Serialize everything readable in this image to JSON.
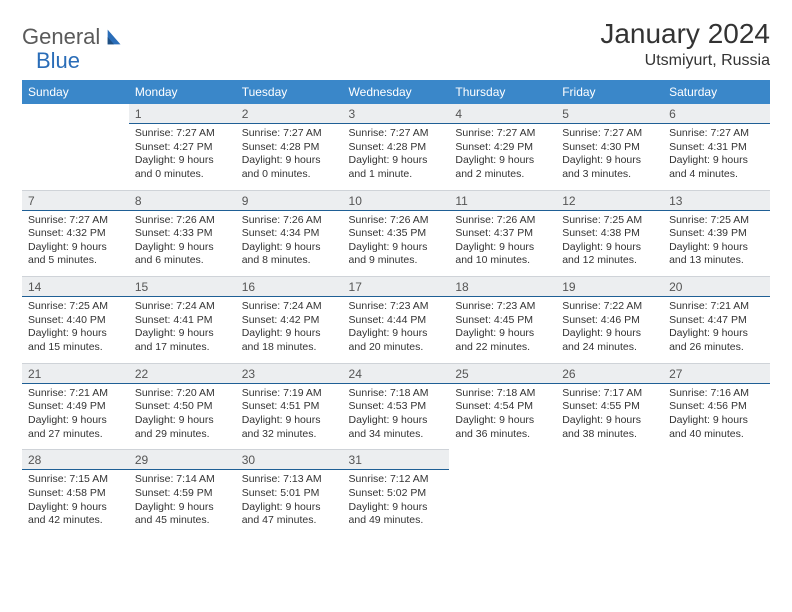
{
  "brand": {
    "part1": "General",
    "part2": "Blue"
  },
  "title": "January 2024",
  "location": "Utsmiyurt, Russia",
  "colors": {
    "header_bg": "#3a87c9",
    "header_text": "#ffffff",
    "daynum_bg": "#eceef0",
    "daynum_border": "#1f5f95",
    "logo_gray": "#5a5a5a",
    "logo_blue": "#2a6db8"
  },
  "day_headers": [
    "Sunday",
    "Monday",
    "Tuesday",
    "Wednesday",
    "Thursday",
    "Friday",
    "Saturday"
  ],
  "labels": {
    "sunrise": "Sunrise:",
    "sunset": "Sunset:",
    "daylight": "Daylight:"
  },
  "weeks": [
    [
      null,
      {
        "n": "1",
        "sr": "7:27 AM",
        "ss": "4:27 PM",
        "dl": "9 hours and 0 minutes."
      },
      {
        "n": "2",
        "sr": "7:27 AM",
        "ss": "4:28 PM",
        "dl": "9 hours and 0 minutes."
      },
      {
        "n": "3",
        "sr": "7:27 AM",
        "ss": "4:28 PM",
        "dl": "9 hours and 1 minute."
      },
      {
        "n": "4",
        "sr": "7:27 AM",
        "ss": "4:29 PM",
        "dl": "9 hours and 2 minutes."
      },
      {
        "n": "5",
        "sr": "7:27 AM",
        "ss": "4:30 PM",
        "dl": "9 hours and 3 minutes."
      },
      {
        "n": "6",
        "sr": "7:27 AM",
        "ss": "4:31 PM",
        "dl": "9 hours and 4 minutes."
      }
    ],
    [
      {
        "n": "7",
        "sr": "7:27 AM",
        "ss": "4:32 PM",
        "dl": "9 hours and 5 minutes."
      },
      {
        "n": "8",
        "sr": "7:26 AM",
        "ss": "4:33 PM",
        "dl": "9 hours and 6 minutes."
      },
      {
        "n": "9",
        "sr": "7:26 AM",
        "ss": "4:34 PM",
        "dl": "9 hours and 8 minutes."
      },
      {
        "n": "10",
        "sr": "7:26 AM",
        "ss": "4:35 PM",
        "dl": "9 hours and 9 minutes."
      },
      {
        "n": "11",
        "sr": "7:26 AM",
        "ss": "4:37 PM",
        "dl": "9 hours and 10 minutes."
      },
      {
        "n": "12",
        "sr": "7:25 AM",
        "ss": "4:38 PM",
        "dl": "9 hours and 12 minutes."
      },
      {
        "n": "13",
        "sr": "7:25 AM",
        "ss": "4:39 PM",
        "dl": "9 hours and 13 minutes."
      }
    ],
    [
      {
        "n": "14",
        "sr": "7:25 AM",
        "ss": "4:40 PM",
        "dl": "9 hours and 15 minutes."
      },
      {
        "n": "15",
        "sr": "7:24 AM",
        "ss": "4:41 PM",
        "dl": "9 hours and 17 minutes."
      },
      {
        "n": "16",
        "sr": "7:24 AM",
        "ss": "4:42 PM",
        "dl": "9 hours and 18 minutes."
      },
      {
        "n": "17",
        "sr": "7:23 AM",
        "ss": "4:44 PM",
        "dl": "9 hours and 20 minutes."
      },
      {
        "n": "18",
        "sr": "7:23 AM",
        "ss": "4:45 PM",
        "dl": "9 hours and 22 minutes."
      },
      {
        "n": "19",
        "sr": "7:22 AM",
        "ss": "4:46 PM",
        "dl": "9 hours and 24 minutes."
      },
      {
        "n": "20",
        "sr": "7:21 AM",
        "ss": "4:47 PM",
        "dl": "9 hours and 26 minutes."
      }
    ],
    [
      {
        "n": "21",
        "sr": "7:21 AM",
        "ss": "4:49 PM",
        "dl": "9 hours and 27 minutes."
      },
      {
        "n": "22",
        "sr": "7:20 AM",
        "ss": "4:50 PM",
        "dl": "9 hours and 29 minutes."
      },
      {
        "n": "23",
        "sr": "7:19 AM",
        "ss": "4:51 PM",
        "dl": "9 hours and 32 minutes."
      },
      {
        "n": "24",
        "sr": "7:18 AM",
        "ss": "4:53 PM",
        "dl": "9 hours and 34 minutes."
      },
      {
        "n": "25",
        "sr": "7:18 AM",
        "ss": "4:54 PM",
        "dl": "9 hours and 36 minutes."
      },
      {
        "n": "26",
        "sr": "7:17 AM",
        "ss": "4:55 PM",
        "dl": "9 hours and 38 minutes."
      },
      {
        "n": "27",
        "sr": "7:16 AM",
        "ss": "4:56 PM",
        "dl": "9 hours and 40 minutes."
      }
    ],
    [
      {
        "n": "28",
        "sr": "7:15 AM",
        "ss": "4:58 PM",
        "dl": "9 hours and 42 minutes."
      },
      {
        "n": "29",
        "sr": "7:14 AM",
        "ss": "4:59 PM",
        "dl": "9 hours and 45 minutes."
      },
      {
        "n": "30",
        "sr": "7:13 AM",
        "ss": "5:01 PM",
        "dl": "9 hours and 47 minutes."
      },
      {
        "n": "31",
        "sr": "7:12 AM",
        "ss": "5:02 PM",
        "dl": "9 hours and 49 minutes."
      },
      null,
      null,
      null
    ]
  ]
}
